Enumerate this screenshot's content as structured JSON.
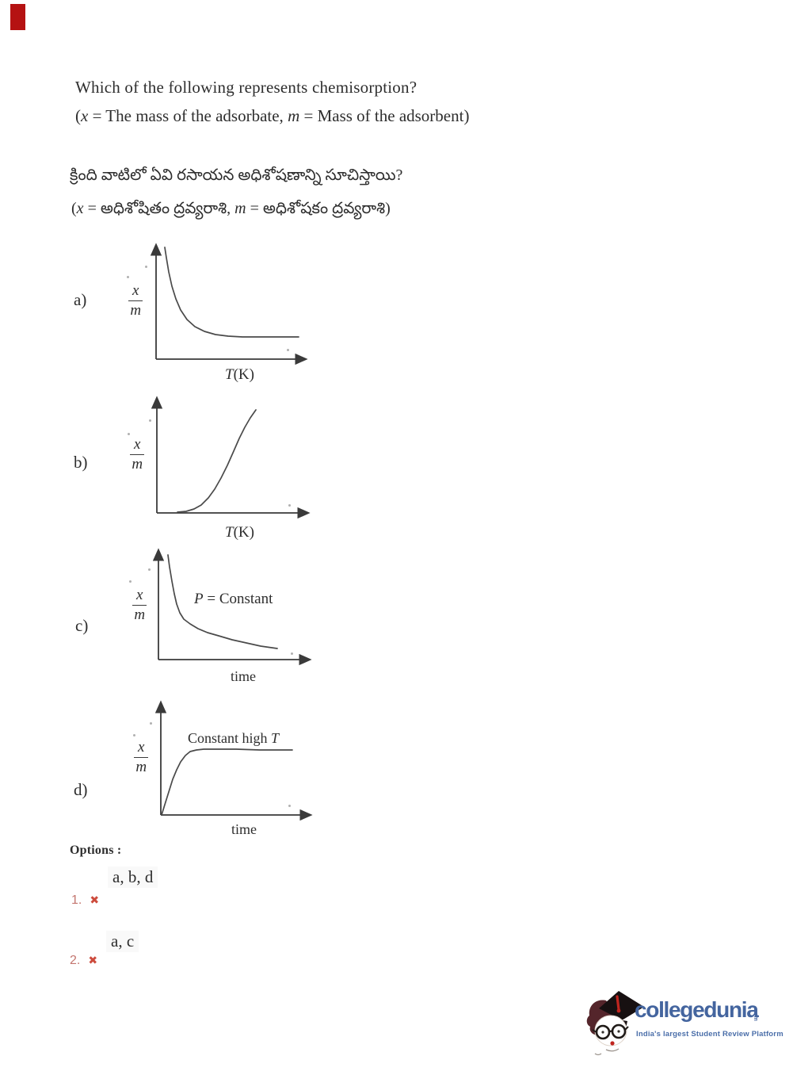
{
  "page": {
    "background": "#ffffff",
    "corner_marker_color": "#b51212"
  },
  "question": {
    "en_line1": "Which of the following represents chemisorption?",
    "en_line2": {
      "open": "(",
      "var1": "x",
      "mid": " = The mass of the adsorbate, ",
      "var2": "m",
      "close": " = Mass of the adsorbent)"
    },
    "te_line1": "క్రింది వాటిలో ఏవి రసాయన అధిశోషణాన్ని సూచిస్తాయి?",
    "te_line2": {
      "open": "(",
      "var1": "x",
      "mid": " = అధిశోషితం ద్రవ్యరాశి, ",
      "var2": "m",
      "close": " = అధిశోషకం ద్రవ్యరాశి)"
    }
  },
  "graphs": [
    {
      "id": "a",
      "label": "a)",
      "y_num": "x",
      "y_den": "m",
      "x_label_var": "T",
      "x_label_rest": "(K)",
      "trend": "x/m decreases steeply with temperature and levels off to an asymptote",
      "axis": {
        "ox": 10,
        "oy": 150,
        "xend": 198,
        "ytop": 7
      },
      "curve": [
        [
          21,
          9
        ],
        [
          23,
          22
        ],
        [
          26,
          40
        ],
        [
          30,
          58
        ],
        [
          35,
          74
        ],
        [
          41,
          88
        ],
        [
          49,
          100
        ],
        [
          59,
          109
        ],
        [
          71,
          115
        ],
        [
          85,
          119
        ],
        [
          101,
          121
        ],
        [
          119,
          122
        ],
        [
          140,
          122
        ],
        [
          160,
          122
        ],
        [
          190,
          122
        ]
      ]
    },
    {
      "id": "b",
      "label": "b)",
      "y_num": "x",
      "y_den": "m",
      "x_label_var": "T",
      "x_label_rest": "(K)",
      "trend": "x/m rises slowly at first, then steeply with temperature",
      "axis": {
        "ox": 10,
        "oy": 149,
        "xend": 200,
        "ytop": 5
      },
      "curve": [
        [
          36,
          148
        ],
        [
          47,
          147
        ],
        [
          57,
          144
        ],
        [
          66,
          139
        ],
        [
          75,
          130
        ],
        [
          83,
          119
        ],
        [
          91,
          105
        ],
        [
          99,
          89
        ],
        [
          107,
          71
        ],
        [
          114,
          55
        ],
        [
          121,
          41
        ],
        [
          128,
          29
        ],
        [
          135,
          19
        ]
      ]
    },
    {
      "id": "c",
      "label": "c)",
      "y_num": "x",
      "y_den": "m",
      "x_label_var": "",
      "x_label_rest": "time",
      "annotation": {
        "pre": "",
        "var": "P",
        "post": " = Constant"
      },
      "trend": "at constant pressure x/m drops sharply then declines gradually with time",
      "axis": {
        "ox": 10,
        "oy": 142,
        "xend": 200,
        "ytop": 5
      },
      "curve": [
        [
          22,
          10
        ],
        [
          24,
          25
        ],
        [
          27,
          43
        ],
        [
          30,
          59
        ],
        [
          33,
          72
        ],
        [
          37,
          83
        ],
        [
          42,
          91
        ],
        [
          50,
          97
        ],
        [
          60,
          103
        ],
        [
          72,
          108
        ],
        [
          86,
          112
        ],
        [
          103,
          117
        ],
        [
          121,
          121
        ],
        [
          139,
          125
        ],
        [
          160,
          128
        ]
      ]
    },
    {
      "id": "d",
      "label": "d)",
      "y_num": "x",
      "y_den": "m",
      "x_label_var": "",
      "x_label_rest": "time",
      "annotation": {
        "pre": "Constant high ",
        "var": "T",
        "post": ""
      },
      "trend": "at constant high temperature x/m rises rapidly then stays constant with time",
      "axis": {
        "ox": 10,
        "oy": 146,
        "xend": 198,
        "ytop": 5
      },
      "curve": [
        [
          11,
          146
        ],
        [
          15,
          133
        ],
        [
          20,
          117
        ],
        [
          25,
          101
        ],
        [
          30,
          89
        ],
        [
          35,
          79
        ],
        [
          41,
          71
        ],
        [
          47,
          66
        ],
        [
          55,
          64
        ],
        [
          64,
          63
        ],
        [
          80,
          63
        ],
        [
          105,
          63
        ],
        [
          135,
          64
        ],
        [
          176,
          64
        ]
      ]
    }
  ],
  "options": {
    "heading": "Options :",
    "mark_glyph": "✖",
    "mark_color": "#cd4b3c",
    "items": [
      {
        "number": "1.",
        "text": "a, b, d",
        "status": "incorrect"
      },
      {
        "number": "2.",
        "text": "a, c",
        "status": "incorrect"
      }
    ]
  },
  "footer": {
    "brand": "collegedunia",
    "brand_suffix": ".com",
    "tagline": "India's largest Student Review Platform",
    "brand_color": "#44659f"
  }
}
